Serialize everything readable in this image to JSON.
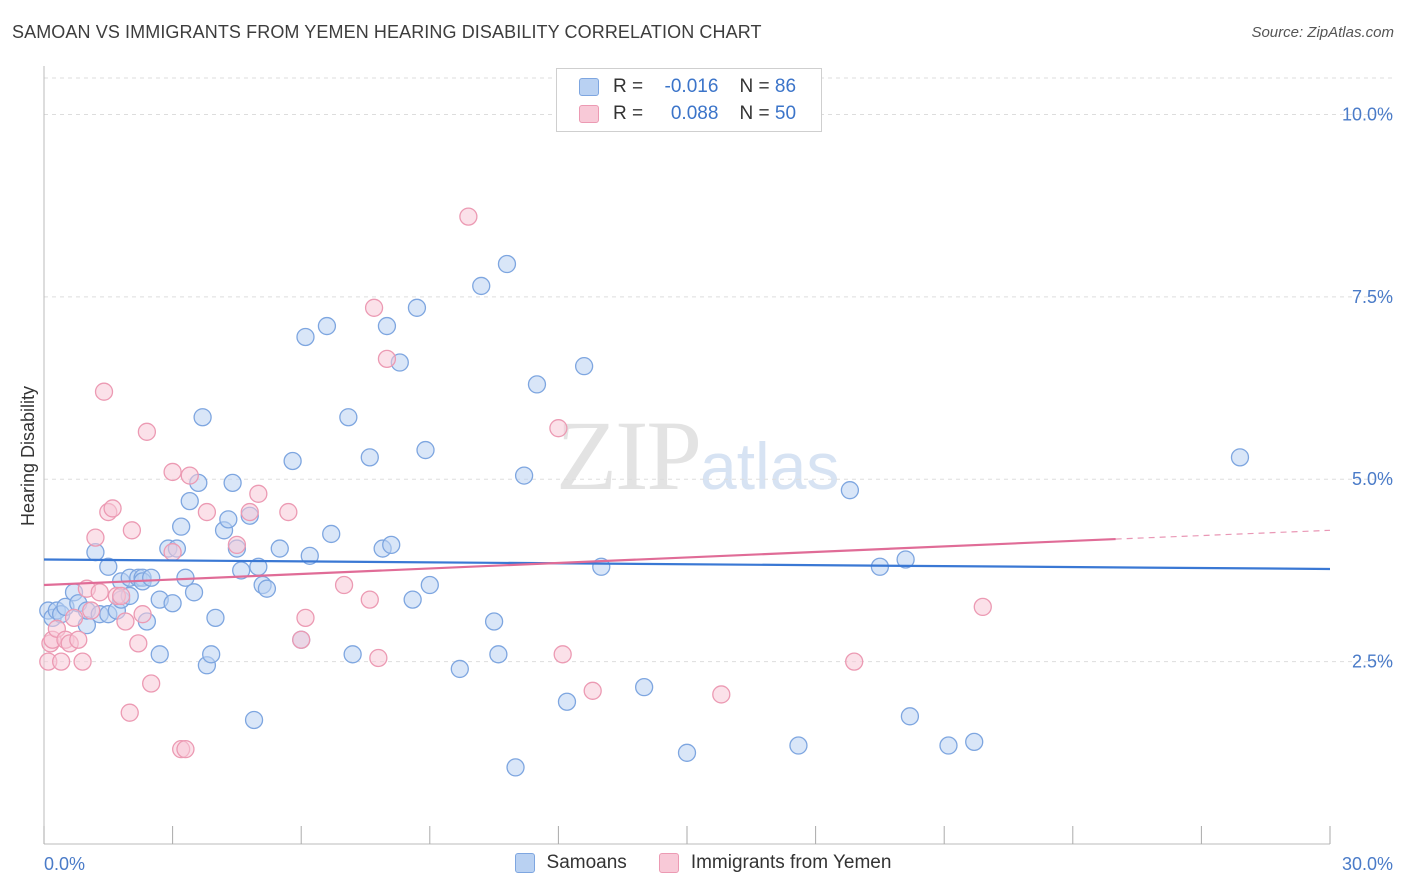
{
  "header": {
    "title": "SAMOAN VS IMMIGRANTS FROM YEMEN HEARING DISABILITY CORRELATION CHART",
    "source": "Source: ZipAtlas.com"
  },
  "legend": {
    "rows": [
      {
        "r_label": "R =",
        "r_value": "-0.016",
        "n_label": "N =",
        "n_value": "86"
      },
      {
        "r_label": "R =",
        "r_value": "0.088",
        "n_label": "N =",
        "n_value": "50"
      }
    ]
  },
  "watermark": {
    "zip": "ZIP",
    "atlas": "atlas"
  },
  "colors": {
    "samoans_fill": "#b9d1f2",
    "samoans_stroke": "#7ea6e0",
    "samoans_line": "#3a78d4",
    "yemen_fill": "#f8c9d7",
    "yemen_stroke": "#ec9ab3",
    "yemen_line": "#e06c97",
    "axis_text": "#4a7bc8",
    "grid": "#dddddd"
  },
  "chart_data": {
    "type": "scatter",
    "title": "SAMOAN VS IMMIGRANTS FROM YEMEN HEARING DISABILITY CORRELATION CHART",
    "xlabel": "",
    "ylabel": "Hearing Disability",
    "xlim": [
      0,
      30
    ],
    "ylim": [
      0,
      10.5
    ],
    "x_tick_labels": [
      "0.0%",
      "30.0%"
    ],
    "y_ticks": [
      2.5,
      5.0,
      7.5,
      10.0
    ],
    "y_tick_labels": [
      "2.5%",
      "5.0%",
      "7.5%",
      "10.0%"
    ],
    "grid": "horizontal dashed",
    "legend_position": "bottom",
    "series": [
      {
        "name": "Samoans",
        "r": -0.016,
        "n": 86,
        "trend": {
          "x": [
            0,
            30
          ],
          "y": [
            3.9,
            3.77
          ]
        },
        "points": [
          [
            0.1,
            3.2
          ],
          [
            0.2,
            3.1
          ],
          [
            0.3,
            3.2
          ],
          [
            0.4,
            3.15
          ],
          [
            0.5,
            3.25
          ],
          [
            0.7,
            3.45
          ],
          [
            0.8,
            3.3
          ],
          [
            1.0,
            3.0
          ],
          [
            1.0,
            3.2
          ],
          [
            1.2,
            4.0
          ],
          [
            1.3,
            3.15
          ],
          [
            1.5,
            3.15
          ],
          [
            1.5,
            3.8
          ],
          [
            1.7,
            3.2
          ],
          [
            1.8,
            3.6
          ],
          [
            1.8,
            3.35
          ],
          [
            2.0,
            3.4
          ],
          [
            2.0,
            3.65
          ],
          [
            2.2,
            3.65
          ],
          [
            2.3,
            3.65
          ],
          [
            2.3,
            3.6
          ],
          [
            2.4,
            3.05
          ],
          [
            2.5,
            3.65
          ],
          [
            2.7,
            3.35
          ],
          [
            2.7,
            2.6
          ],
          [
            2.9,
            4.05
          ],
          [
            3.0,
            3.3
          ],
          [
            3.1,
            4.05
          ],
          [
            3.2,
            4.35
          ],
          [
            3.3,
            3.65
          ],
          [
            3.4,
            4.7
          ],
          [
            3.5,
            3.45
          ],
          [
            3.6,
            4.95
          ],
          [
            3.7,
            5.85
          ],
          [
            3.8,
            2.45
          ],
          [
            3.9,
            2.6
          ],
          [
            4.0,
            3.1
          ],
          [
            4.2,
            4.3
          ],
          [
            4.3,
            4.45
          ],
          [
            4.4,
            4.95
          ],
          [
            4.5,
            4.05
          ],
          [
            4.6,
            3.75
          ],
          [
            4.8,
            4.5
          ],
          [
            4.9,
            1.7
          ],
          [
            5.0,
            3.8
          ],
          [
            5.1,
            3.55
          ],
          [
            5.2,
            3.5
          ],
          [
            5.5,
            4.05
          ],
          [
            5.8,
            5.25
          ],
          [
            6.0,
            2.8
          ],
          [
            6.1,
            6.95
          ],
          [
            6.2,
            3.95
          ],
          [
            6.6,
            7.1
          ],
          [
            6.7,
            4.25
          ],
          [
            7.1,
            5.85
          ],
          [
            7.2,
            2.6
          ],
          [
            7.6,
            5.3
          ],
          [
            7.9,
            4.05
          ],
          [
            8.0,
            7.1
          ],
          [
            8.1,
            4.1
          ],
          [
            8.3,
            6.6
          ],
          [
            8.6,
            3.35
          ],
          [
            8.7,
            7.35
          ],
          [
            8.9,
            5.4
          ],
          [
            9.0,
            3.55
          ],
          [
            9.7,
            2.4
          ],
          [
            10.2,
            7.65
          ],
          [
            10.5,
            3.05
          ],
          [
            10.6,
            2.6
          ],
          [
            10.8,
            7.95
          ],
          [
            11.0,
            1.05
          ],
          [
            11.2,
            5.05
          ],
          [
            11.5,
            6.3
          ],
          [
            12.2,
            1.95
          ],
          [
            12.6,
            6.55
          ],
          [
            13.0,
            3.8
          ],
          [
            14.0,
            2.15
          ],
          [
            15.0,
            1.25
          ],
          [
            17.6,
            1.35
          ],
          [
            18.8,
            4.85
          ],
          [
            19.5,
            3.8
          ],
          [
            20.1,
            3.9
          ],
          [
            20.2,
            1.75
          ],
          [
            21.1,
            1.35
          ],
          [
            21.7,
            1.4
          ],
          [
            27.9,
            5.3
          ]
        ]
      },
      {
        "name": "Immigrants from Yemen",
        "r": 0.088,
        "n": 50,
        "trend": {
          "x": [
            0,
            25.0
          ],
          "y": [
            3.55,
            4.18
          ]
        },
        "trend_dashed": {
          "x": [
            25.0,
            30
          ],
          "y": [
            4.18,
            4.3
          ]
        },
        "points": [
          [
            0.1,
            2.5
          ],
          [
            0.15,
            2.75
          ],
          [
            0.2,
            2.8
          ],
          [
            0.3,
            2.95
          ],
          [
            0.4,
            2.5
          ],
          [
            0.5,
            2.8
          ],
          [
            0.6,
            2.75
          ],
          [
            0.7,
            3.1
          ],
          [
            0.8,
            2.8
          ],
          [
            0.9,
            2.5
          ],
          [
            1.0,
            3.5
          ],
          [
            1.1,
            3.2
          ],
          [
            1.2,
            4.2
          ],
          [
            1.3,
            3.45
          ],
          [
            1.4,
            6.2
          ],
          [
            1.5,
            4.55
          ],
          [
            1.6,
            4.6
          ],
          [
            1.7,
            3.4
          ],
          [
            1.8,
            3.4
          ],
          [
            1.9,
            3.05
          ],
          [
            2.0,
            1.8
          ],
          [
            2.05,
            4.3
          ],
          [
            2.2,
            2.75
          ],
          [
            2.3,
            3.15
          ],
          [
            2.4,
            5.65
          ],
          [
            2.5,
            2.2
          ],
          [
            3.0,
            4.0
          ],
          [
            3.0,
            5.1
          ],
          [
            3.2,
            1.3
          ],
          [
            3.3,
            1.3
          ],
          [
            3.4,
            5.05
          ],
          [
            3.8,
            4.55
          ],
          [
            4.5,
            4.1
          ],
          [
            4.8,
            4.55
          ],
          [
            5.0,
            4.8
          ],
          [
            5.7,
            4.55
          ],
          [
            6.0,
            2.8
          ],
          [
            6.1,
            3.1
          ],
          [
            7.0,
            3.55
          ],
          [
            7.6,
            3.35
          ],
          [
            7.7,
            7.35
          ],
          [
            7.8,
            2.55
          ],
          [
            8.0,
            6.65
          ],
          [
            9.9,
            8.6
          ],
          [
            12.0,
            5.7
          ],
          [
            12.1,
            2.6
          ],
          [
            12.8,
            2.1
          ],
          [
            15.8,
            2.05
          ],
          [
            18.9,
            2.5
          ],
          [
            21.9,
            3.25
          ]
        ]
      }
    ]
  }
}
